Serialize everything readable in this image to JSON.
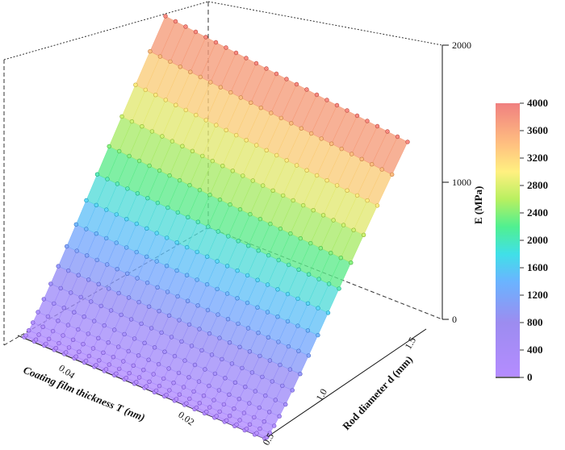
{
  "chart_data": {
    "type": "surface3d",
    "xlabel": "Coating film thickness T (nm)",
    "ylabel": "Rod diameter d (mm)",
    "zlabel": "E (MPa)",
    "x_tick_labels": [
      "0.04",
      "0.02"
    ],
    "y_tick_labels": [
      "0.5",
      "1.0",
      "1.5"
    ],
    "z_ticks": [
      0,
      1000,
      2000
    ],
    "zlim": [
      0,
      2000
    ],
    "colorbar": {
      "ticks": [
        0,
        400,
        800,
        1200,
        1600,
        2000,
        2400,
        2800,
        3200,
        3600,
        4000
      ],
      "range": [
        0,
        4000
      ],
      "colors": [
        "#a979ff",
        "#8c8cff",
        "#5fb4ff",
        "#3ee0e8",
        "#4cf07a",
        "#c0f060",
        "#fff060",
        "#ffc060",
        "#ff8a80",
        "#f07878"
      ]
    },
    "surface": {
      "grid_u": 24,
      "grid_v": 16,
      "points_visible": true,
      "E_at_min_d": 0,
      "E_at_max_d": 2000
    },
    "grid": false
  }
}
